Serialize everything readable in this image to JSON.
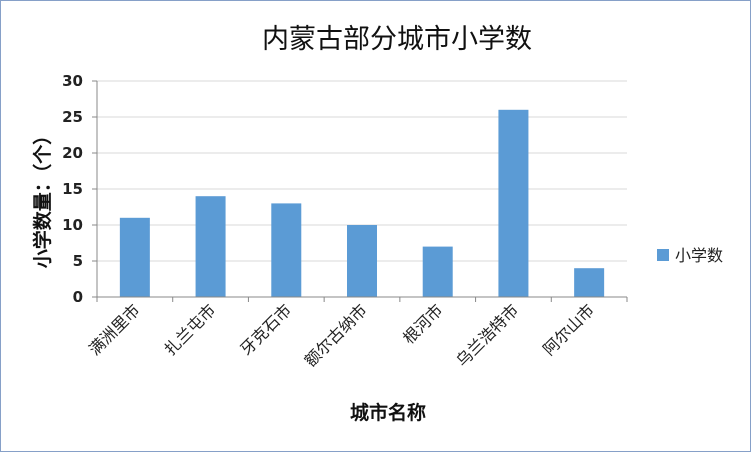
{
  "chart_data": {
    "type": "bar",
    "title": "内蒙古部分城市小学数",
    "xlabel": "城市名称",
    "ylabel": "小学数量：（个）",
    "categories": [
      "满洲里市",
      "扎兰屯市",
      "牙克石市",
      "额尔古纳市",
      "根河市",
      "乌兰浩特市",
      "阿尔山市"
    ],
    "series": [
      {
        "name": "小学数",
        "values": [
          11,
          14,
          13,
          10,
          7,
          26,
          4
        ]
      }
    ],
    "ylim": [
      0,
      30
    ],
    "yticks": [
      0,
      5,
      10,
      15,
      20,
      25,
      30
    ],
    "grid": true,
    "legend_position": "right",
    "bar_color": "#5b9bd5"
  }
}
